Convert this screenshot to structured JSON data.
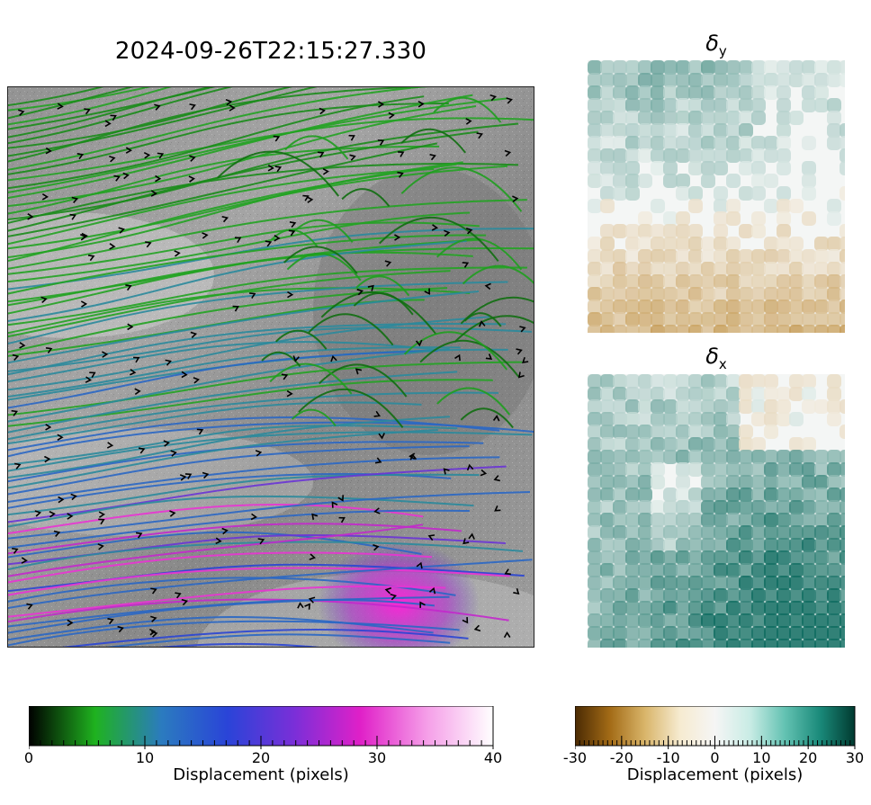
{
  "main_panel": {
    "title": "2024-09-26T22:15:27.330"
  },
  "side_panels": {
    "top": {
      "title_symbol": "δ",
      "title_subscript": "y"
    },
    "bottom": {
      "title_symbol": "δ",
      "title_subscript": "x"
    }
  },
  "colorbars": {
    "displacement": {
      "label": "Displacement (pixels)",
      "range": [
        0,
        40
      ],
      "ticks": [
        "0",
        "10",
        "20",
        "30",
        "40"
      ],
      "colormap_stops": [
        "#000000",
        "#1fb21f",
        "#2b7bbf",
        "#2a44d8",
        "#7a2fd8",
        "#e020c8",
        "#f59ee8",
        "#ffffff"
      ]
    },
    "signed_displacement": {
      "label": "Displacement (pixels)",
      "range": [
        -30,
        30
      ],
      "ticks": [
        "-30",
        "-20",
        "-10",
        "0",
        "10",
        "20",
        "30"
      ],
      "colormap_stops": [
        "#4a2a03",
        "#a36b16",
        "#d9b56a",
        "#f6ebd0",
        "#f5f5f5",
        "#c9ece5",
        "#63c2b2",
        "#1a8a7a",
        "#013a30"
      ]
    }
  }
}
